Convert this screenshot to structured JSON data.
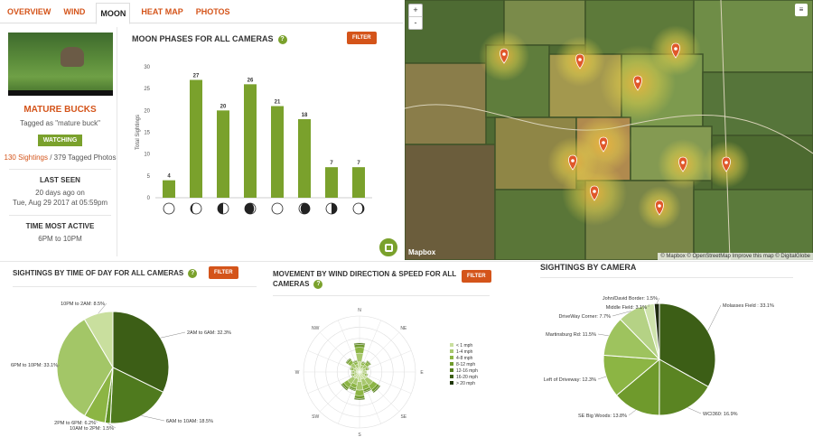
{
  "tabs": [
    "OVERVIEW",
    "WIND",
    "MOON",
    "HEAT MAP",
    "PHOTOS"
  ],
  "active_tab": "MOON",
  "profile": {
    "name": "MATURE BUCKS",
    "tagged": "Tagged as \"mature buck\"",
    "watching": "WATCHING",
    "sightings_link": "130 Sightings",
    "sightings_rest": " / 379 Tagged Photos",
    "last_seen_label": "LAST SEEN",
    "last_seen_value": "20 days ago on",
    "last_seen_date": "Tue, Aug 29 2017 at 05:59pm",
    "active_label": "TIME MOST ACTIVE",
    "active_value": "6PM to 10PM"
  },
  "moon": {
    "title": "MOON PHASES FOR ALL CAMERAS",
    "filter": "FILTER",
    "ylabel": "Total Sightings"
  },
  "map": {
    "zoom_in": "+",
    "zoom_out": "-",
    "layers_icon": "≡",
    "logo": "Mapbox",
    "attribution": "© Mapbox © OpenStreetMap Improve this map © DigitalGlobe"
  },
  "time_of_day": {
    "title": "SIGHTINGS BY TIME OF DAY FOR ALL CAMERAS",
    "filter": "FILTER"
  },
  "wind": {
    "title_line1": "MOVEMENT BY WIND DIRECTION & SPEED FOR ALL",
    "title_line2": "CAMERAS",
    "filter": "FILTER",
    "directions": [
      "N",
      "NE",
      "E",
      "SE",
      "S",
      "SW",
      "W",
      "NW"
    ]
  },
  "camera": {
    "title": "SIGHTINGS BY CAMERA"
  },
  "colors": {
    "accent": "#d4541a",
    "green": "#7aa12c"
  },
  "chart_data": [
    {
      "type": "bar",
      "title": "MOON PHASES FOR ALL CAMERAS",
      "ylabel": "Total Sightings",
      "ylim": [
        0,
        30
      ],
      "yticks": [
        0,
        5,
        10,
        15,
        20,
        25,
        30
      ],
      "categories": [
        "new",
        "waxing crescent",
        "first quarter",
        "waxing gibbous",
        "full",
        "waning gibbous",
        "last quarter",
        "waning crescent"
      ],
      "values": [
        4,
        27,
        20,
        26,
        21,
        18,
        7,
        7
      ]
    },
    {
      "type": "pie",
      "title": "SIGHTINGS BY TIME OF DAY FOR ALL CAMERAS",
      "labels": [
        "2AM to 6AM: 32.3%",
        "6AM to 10AM: 18.5%",
        "10AM to 2PM: 1.5%",
        "2PM to 6PM: 6.2%",
        "6PM to 10PM: 33.1%",
        "10PM to 2AM: 8.5%"
      ],
      "values": [
        32.3,
        18.5,
        1.5,
        6.2,
        33.1,
        8.5
      ],
      "colors": [
        "#3c5e16",
        "#4f7a1e",
        "#5e8f24",
        "#8cb544",
        "#a3c667",
        "#c9df9e"
      ]
    },
    {
      "type": "polar-bar",
      "title": "MOVEMENT BY WIND DIRECTION & SPEED FOR ALL CAMERAS",
      "directions": [
        "N",
        "NNE",
        "NE",
        "ENE",
        "E",
        "ESE",
        "SE",
        "SSE",
        "S",
        "SSW",
        "SW",
        "WSW",
        "W",
        "WNW",
        "NW",
        "NNW"
      ],
      "totals": [
        0.52,
        0.2,
        0.25,
        0.18,
        0.13,
        0.16,
        0.45,
        0.38,
        0.5,
        0.35,
        0.4,
        0.16,
        0.15,
        0.18,
        0.3,
        0.22
      ],
      "legend": [
        "< 1 mph",
        "1-4 mph",
        "4-8 mph",
        "8-12 mph",
        "12-16 mph",
        "16-20 mph",
        "> 20 mph"
      ],
      "legend_colors": [
        "#c9df9e",
        "#a8c86e",
        "#8cb544",
        "#6f9a2c",
        "#557d1f",
        "#3c5e16",
        "#1f3508"
      ]
    },
    {
      "type": "pie",
      "title": "SIGHTINGS BY CAMERA",
      "labels": [
        "Molasses Field : 33.1%",
        "WCI360: 16.9%",
        "SE Big Woods: 13.8%",
        "Left of Driveway: 12.3%",
        "Martinsburg Rd: 11.5%",
        "DriveWay Corner: 7.7%",
        "Middle Field: 3.1%",
        "John/David Border: 1.5%"
      ],
      "values": [
        33.1,
        16.9,
        13.8,
        12.3,
        11.5,
        7.7,
        3.1,
        1.5
      ],
      "colors": [
        "#3c5e16",
        "#5a8422",
        "#6f9a2c",
        "#8cb544",
        "#9ec35e",
        "#b5d285",
        "#cfe3ad",
        "#1f2a10"
      ]
    }
  ]
}
